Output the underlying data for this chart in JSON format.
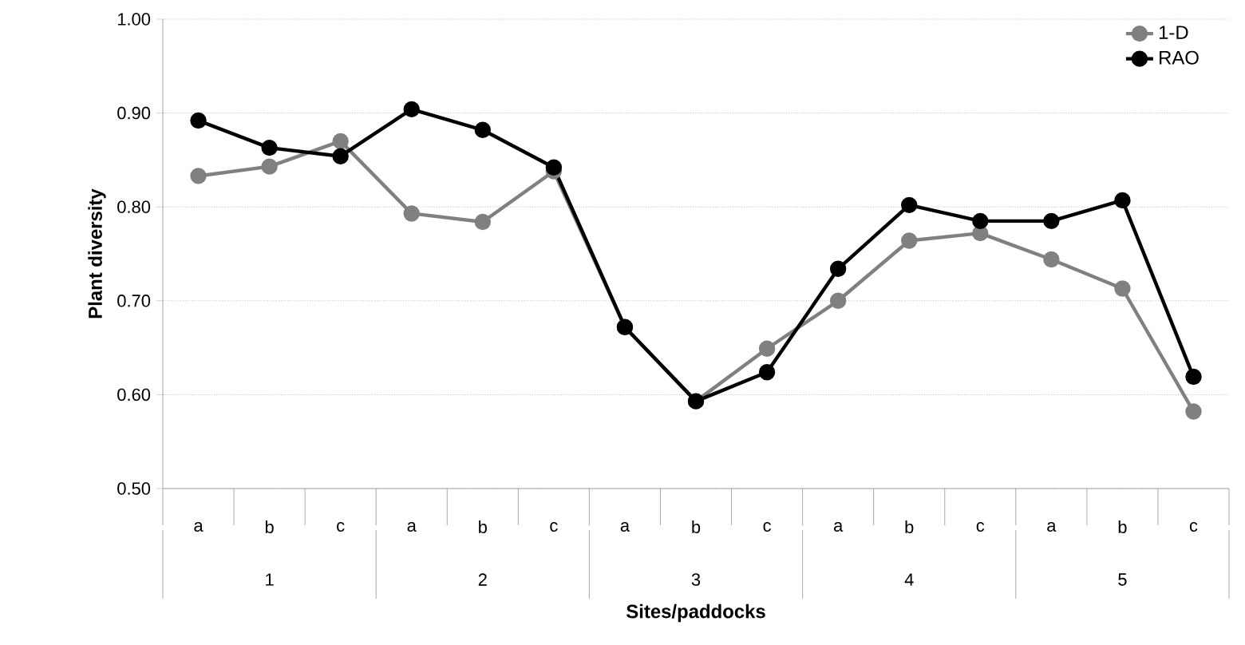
{
  "chart_data": {
    "type": "line",
    "xlabel": "Sites/paddocks",
    "ylabel": "Plant diversity",
    "categories": [
      "a",
      "b",
      "c",
      "a",
      "b",
      "c",
      "a",
      "b",
      "c",
      "a",
      "b",
      "c",
      "a",
      "b",
      "c"
    ],
    "annotations": [
      "1",
      "2",
      "3",
      "4",
      "5"
    ],
    "series": [
      {
        "name": "1-D",
        "color": "#808080",
        "values": [
          0.833,
          0.843,
          0.87,
          0.793,
          0.784,
          0.838,
          0.672,
          0.593,
          0.649,
          0.7,
          0.764,
          0.772,
          0.744,
          0.713,
          0.582
        ]
      },
      {
        "name": "RAO",
        "color": "#000000",
        "values": [
          0.892,
          0.863,
          0.854,
          0.904,
          0.882,
          0.842,
          0.672,
          0.593,
          0.624,
          0.734,
          0.802,
          0.785,
          0.785,
          0.807,
          0.619
        ]
      }
    ],
    "ylim": [
      0.5,
      1.0
    ],
    "yticks": [
      {
        "value": 0.5,
        "label": "0.50"
      },
      {
        "value": 0.6,
        "label": "0.60"
      },
      {
        "value": 0.7,
        "label": "0.70"
      },
      {
        "value": 0.8,
        "label": "0.80"
      },
      {
        "value": 0.9,
        "label": "0.90"
      },
      {
        "value": 1.0,
        "label": "1.00"
      }
    ],
    "grid": "y",
    "legend": "top right",
    "marker": "circle",
    "line_style": "solid"
  }
}
